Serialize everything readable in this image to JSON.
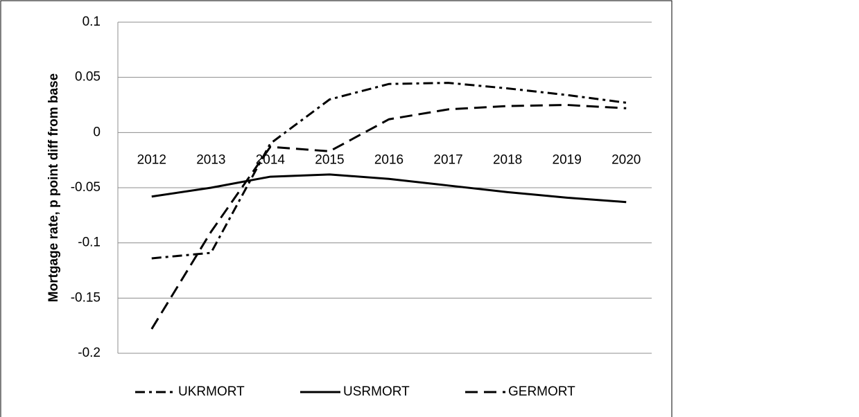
{
  "chart_data": {
    "type": "line",
    "y_label": "Mortgage rate, p point diff from base",
    "categories": [
      "2012",
      "2013",
      "2014",
      "2015",
      "2016",
      "2017",
      "2018",
      "2019",
      "2020"
    ],
    "series": [
      {
        "name": "UKRMORT",
        "color": "#000000",
        "dash": "dash-dot",
        "values": [
          -0.114,
          -0.109,
          -0.01,
          0.03,
          0.044,
          0.045,
          0.04,
          0.034,
          0.027
        ]
      },
      {
        "name": "USRMORT",
        "color": "#000000",
        "dash": "solid",
        "values": [
          -0.058,
          -0.05,
          -0.04,
          -0.038,
          -0.042,
          -0.048,
          -0.054,
          -0.059,
          -0.063
        ]
      },
      {
        "name": "GERMORT",
        "color": "#000000",
        "dash": "dash",
        "values": [
          -0.178,
          -0.09,
          -0.013,
          -0.017,
          0.012,
          0.021,
          0.024,
          0.025,
          0.022
        ]
      }
    ],
    "ylim": [
      -0.2,
      0.1
    ],
    "yticks": [
      0.1,
      0.05,
      0,
      -0.05,
      -0.1,
      -0.15,
      -0.2
    ],
    "grid": true,
    "legend": "bottom"
  }
}
